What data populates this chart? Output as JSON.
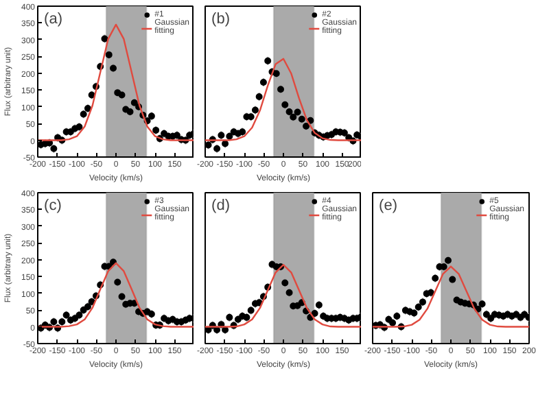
{
  "chart_data": [
    {
      "type": "scatter",
      "annotations": [
        "(a)"
      ],
      "xlabel": "Velocity (km/s)",
      "ylabel": "Flux (arbitrary unit)",
      "xlim": [
        -200,
        200
      ],
      "ylim": [
        -50,
        400
      ],
      "xticks": [
        -200,
        -150,
        -100,
        -50,
        0,
        50,
        100,
        150
      ],
      "yticks": [
        -50,
        0,
        50,
        100,
        150,
        200,
        250,
        300,
        350,
        400
      ],
      "grid": false,
      "legend": "top right",
      "bands": [
        {
          "axis": "x",
          "from": -25,
          "to": 78,
          "color": "#aaaaaa"
        }
      ],
      "x": [
        -192,
        -181,
        -170,
        -159,
        -149,
        -138,
        -127,
        -116,
        -105,
        -94,
        -83,
        -72,
        -62,
        -51,
        -40,
        -29,
        -18,
        -7,
        4,
        15,
        25,
        36,
        47,
        58,
        69,
        80,
        91,
        102,
        112,
        123,
        134,
        145,
        156,
        167,
        178,
        188,
        199
      ],
      "series": [
        {
          "name": "#1",
          "color": "#000000",
          "marker": "circle",
          "values": [
            -13,
            -10,
            -8,
            -25,
            8,
            0,
            25,
            25,
            35,
            40,
            78,
            95,
            135,
            160,
            220,
            303,
            255,
            215,
            142,
            135,
            92,
            85,
            112,
            100,
            75,
            58,
            72,
            30,
            5,
            20,
            12,
            12,
            15,
            2,
            0,
            15,
            20
          ],
          "errors": [
            12,
            12,
            12,
            12,
            12,
            12,
            12,
            12,
            12,
            12,
            12,
            12,
            12,
            12,
            12,
            12,
            12,
            12,
            12,
            12,
            12,
            12,
            12,
            12,
            12,
            12,
            12,
            12,
            12,
            12,
            12,
            12,
            12,
            12,
            12,
            12,
            12
          ]
        },
        {
          "name": "Gaussian fitting",
          "type": "line",
          "color": "#e04a3f",
          "x": [
            -200,
            -180,
            -160,
            -140,
            -120,
            -100,
            -80,
            -60,
            -40,
            -20,
            0,
            20,
            40,
            60,
            80,
            100,
            120,
            140,
            160,
            180,
            200
          ],
          "values": [
            0,
            0,
            0,
            0,
            3,
            12,
            41,
            104,
            203,
            302,
            345,
            302,
            203,
            104,
            41,
            12,
            3,
            0,
            0,
            0,
            0
          ]
        }
      ]
    },
    {
      "type": "scatter",
      "annotations": [
        "(b)"
      ],
      "xlabel": "Velocity (km/s)",
      "xlim": [
        -200,
        200
      ],
      "ylim": [
        -50,
        400
      ],
      "xticks": [
        -200,
        -150,
        -100,
        -50,
        0,
        50,
        100,
        150,
        200
      ],
      "yticks": [
        -50,
        0,
        50,
        100,
        150,
        200,
        250,
        300,
        350,
        400
      ],
      "tick_labels": "x",
      "grid": false,
      "legend": "top right",
      "bands": [
        {
          "axis": "x",
          "from": -25,
          "to": 78,
          "color": "#aaaaaa"
        }
      ],
      "x": [
        -192,
        -181,
        -170,
        -159,
        -149,
        -138,
        -127,
        -116,
        -105,
        -94,
        -83,
        -72,
        -62,
        -51,
        -40,
        -29,
        -18,
        -7,
        4,
        15,
        25,
        36,
        47,
        58,
        69,
        80,
        91,
        102,
        112,
        123,
        134,
        145,
        156,
        167,
        178,
        188,
        199
      ],
      "series": [
        {
          "name": "#2",
          "color": "#000000",
          "marker": "circle",
          "values": [
            -14,
            2,
            -25,
            15,
            -10,
            12,
            25,
            20,
            25,
            70,
            70,
            90,
            130,
            173,
            237,
            204,
            199,
            152,
            106,
            85,
            69,
            84,
            63,
            42,
            59,
            22,
            15,
            10,
            14,
            17,
            25,
            24,
            22,
            8,
            -2,
            16,
            10
          ],
          "errors": [
            12,
            12,
            12,
            12,
            12,
            12,
            12,
            12,
            12,
            12,
            12,
            12,
            12,
            12,
            12,
            12,
            12,
            12,
            12,
            12,
            12,
            12,
            12,
            12,
            12,
            12,
            12,
            12,
            12,
            12,
            12,
            12,
            12,
            12,
            12,
            12,
            12
          ]
        },
        {
          "name": "Gaussian fitting",
          "type": "line",
          "color": "#e04a3f",
          "x": [
            -200,
            -180,
            -160,
            -140,
            -120,
            -100,
            -80,
            -60,
            -40,
            -20,
            0,
            20,
            40,
            60,
            80,
            100,
            120,
            140,
            160,
            180,
            200
          ],
          "values": [
            0,
            0,
            0,
            0,
            3,
            12,
            38,
            89,
            163,
            227,
            243,
            199,
            125,
            60,
            22,
            6,
            1,
            0,
            0,
            0,
            0
          ]
        }
      ]
    },
    {
      "type": "scatter",
      "annotations": [
        "(c)"
      ],
      "xlabel": "Velocity (km/s)",
      "ylabel": "Flux (arbitrary unit)",
      "xlim": [
        -200,
        200
      ],
      "ylim": [
        -50,
        400
      ],
      "xticks": [
        -200,
        -150,
        -100,
        -50,
        0,
        50,
        100,
        150
      ],
      "yticks": [
        -50,
        0,
        50,
        100,
        150,
        200,
        250,
        300,
        350,
        400
      ],
      "grid": false,
      "legend": "top right",
      "bands": [
        {
          "axis": "x",
          "from": -25,
          "to": 78,
          "color": "#aaaaaa"
        }
      ],
      "x": [
        -192,
        -181,
        -170,
        -159,
        -149,
        -138,
        -127,
        -116,
        -105,
        -94,
        -83,
        -72,
        -62,
        -51,
        -40,
        -29,
        -18,
        -7,
        4,
        15,
        25,
        36,
        47,
        58,
        69,
        80,
        91,
        102,
        112,
        123,
        134,
        145,
        156,
        167,
        178,
        188,
        199
      ],
      "series": [
        {
          "name": "#3",
          "color": "#000000",
          "marker": "circle",
          "values": [
            -4,
            5,
            -2,
            15,
            -4,
            15,
            35,
            20,
            25,
            35,
            50,
            60,
            75,
            92,
            125,
            180,
            180,
            193,
            133,
            90,
            67,
            70,
            70,
            45,
            40,
            45,
            38,
            5,
            5,
            25,
            18,
            22,
            15,
            15,
            20,
            25,
            25
          ],
          "errors": [
            12,
            12,
            12,
            12,
            12,
            12,
            12,
            12,
            12,
            12,
            12,
            12,
            12,
            12,
            12,
            12,
            12,
            12,
            12,
            12,
            12,
            12,
            12,
            12,
            12,
            12,
            12,
            12,
            12,
            12,
            12,
            12,
            12,
            12,
            12,
            12,
            12
          ]
        },
        {
          "name": "Gaussian fitting",
          "type": "line",
          "color": "#e04a3f",
          "x": [
            -200,
            -180,
            -160,
            -140,
            -120,
            -100,
            -80,
            -60,
            -40,
            -20,
            0,
            20,
            40,
            60,
            80,
            100,
            120,
            140,
            160,
            180,
            200
          ],
          "values": [
            0,
            0,
            0,
            0,
            2,
            7,
            22,
            57,
            112,
            166,
            190,
            166,
            112,
            57,
            22,
            7,
            2,
            0,
            0,
            0,
            0
          ]
        }
      ]
    },
    {
      "type": "scatter",
      "annotations": [
        "(d)"
      ],
      "xlabel": "Velocity (km/s)",
      "xlim": [
        -200,
        200
      ],
      "ylim": [
        -50,
        400
      ],
      "xticks": [
        -200,
        -150,
        -100,
        -50,
        0,
        50,
        100,
        150
      ],
      "yticks": [
        -50,
        0,
        50,
        100,
        150,
        200,
        250,
        300,
        350,
        400
      ],
      "tick_labels": "x",
      "grid": false,
      "legend": "top right",
      "bands": [
        {
          "axis": "x",
          "from": -25,
          "to": 78,
          "color": "#aaaaaa"
        }
      ],
      "x": [
        -192,
        -181,
        -170,
        -159,
        -149,
        -138,
        -127,
        -116,
        -105,
        -94,
        -83,
        -72,
        -62,
        -51,
        -40,
        -29,
        -18,
        -7,
        4,
        15,
        25,
        36,
        47,
        58,
        69,
        80,
        91,
        102,
        112,
        123,
        134,
        145,
        156,
        167,
        178,
        188,
        199
      ],
      "series": [
        {
          "name": "#4",
          "color": "#000000",
          "marker": "circle",
          "values": [
            -9,
            4,
            -9,
            7,
            -9,
            28,
            4,
            22,
            32,
            28,
            49,
            69,
            72,
            90,
            118,
            186,
            179,
            179,
            131,
            102,
            62,
            63,
            72,
            47,
            28,
            40,
            65,
            32,
            25,
            25,
            25,
            28,
            25,
            20,
            25,
            25,
            30
          ],
          "errors": [
            12,
            12,
            12,
            12,
            12,
            12,
            12,
            12,
            12,
            12,
            12,
            12,
            12,
            12,
            12,
            12,
            12,
            12,
            12,
            12,
            12,
            12,
            12,
            12,
            12,
            12,
            12,
            12,
            12,
            12,
            12,
            12,
            12,
            12,
            12,
            12,
            12
          ]
        },
        {
          "name": "Gaussian fitting",
          "type": "line",
          "color": "#e04a3f",
          "x": [
            -200,
            -180,
            -160,
            -140,
            -120,
            -100,
            -80,
            -60,
            -40,
            -20,
            0,
            20,
            40,
            60,
            80,
            100,
            120,
            140,
            160,
            180,
            200
          ],
          "values": [
            0,
            0,
            0,
            0,
            1,
            7,
            22,
            56,
            109,
            162,
            185,
            162,
            109,
            56,
            22,
            7,
            1,
            0,
            0,
            0,
            0
          ]
        }
      ]
    },
    {
      "type": "scatter",
      "annotations": [
        "(e)"
      ],
      "xlabel": "Velocity (km/s)",
      "xlim": [
        -200,
        200
      ],
      "ylim": [
        -50,
        400
      ],
      "xticks": [
        -200,
        -150,
        -100,
        -50,
        0,
        50,
        100,
        150,
        200
      ],
      "yticks": [
        -50,
        0,
        50,
        100,
        150,
        200,
        250,
        300,
        350,
        400
      ],
      "tick_labels": "x",
      "grid": false,
      "legend": "top right",
      "bands": [
        {
          "axis": "x",
          "from": -25,
          "to": 78,
          "color": "#aaaaaa"
        }
      ],
      "x": [
        -192,
        -181,
        -170,
        -159,
        -149,
        -138,
        -127,
        -116,
        -105,
        -94,
        -83,
        -72,
        -62,
        -51,
        -40,
        -29,
        -18,
        -7,
        4,
        15,
        25,
        36,
        47,
        58,
        69,
        80,
        91,
        102,
        112,
        123,
        134,
        145,
        156,
        167,
        178,
        188,
        199
      ],
      "series": [
        {
          "name": "#5",
          "color": "#000000",
          "marker": "circle",
          "values": [
            4,
            6,
            -2,
            22,
            12,
            32,
            0,
            49,
            45,
            41,
            59,
            74,
            99,
            102,
            145,
            179,
            179,
            198,
            141,
            80,
            74,
            70,
            68,
            65,
            53,
            68,
            37,
            25,
            37,
            35,
            32,
            37,
            32,
            37,
            28,
            37,
            28
          ],
          "errors": [
            12,
            12,
            12,
            12,
            12,
            12,
            12,
            12,
            12,
            12,
            12,
            12,
            12,
            12,
            12,
            12,
            12,
            12,
            12,
            12,
            12,
            12,
            12,
            12,
            12,
            12,
            12,
            12,
            12,
            12,
            12,
            12,
            12,
            12,
            12,
            12,
            12
          ]
        },
        {
          "name": "Gaussian fitting",
          "type": "line",
          "color": "#e04a3f",
          "x": [
            -200,
            -180,
            -160,
            -140,
            -120,
            -100,
            -80,
            -60,
            -40,
            -20,
            0,
            20,
            40,
            60,
            80,
            100,
            120,
            140,
            160,
            180,
            200
          ],
          "values": [
            0,
            0,
            0,
            0,
            1,
            6,
            21,
            54,
            106,
            158,
            180,
            158,
            106,
            54,
            21,
            6,
            1,
            0,
            0,
            0,
            0
          ]
        }
      ]
    }
  ]
}
